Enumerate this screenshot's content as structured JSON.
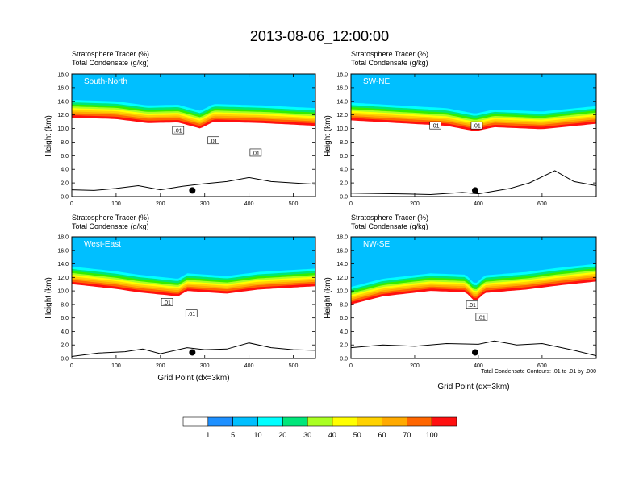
{
  "chart_data": {
    "type": "heatmap",
    "title": "2013-08-06_12:00:00",
    "variables": [
      {
        "name": "Stratosphere Tracer",
        "units": "(%)"
      },
      {
        "name": "Total Condensate",
        "units": "(g/kg)"
      }
    ],
    "xlabel": "Grid Point (dx=3km)",
    "ylabel": "Height (km)",
    "ylim": [
      0,
      18
    ],
    "yticks": [
      "0.0",
      "2.0",
      "4.0",
      "6.0",
      "8.0",
      "10.0",
      "12.0",
      "14.0",
      "16.0",
      "18.0"
    ],
    "contour_note": "Total Condensate Contours: .01 to .01 by .000",
    "colorbar": {
      "levels": [
        "1",
        "5",
        "10",
        "20",
        "30",
        "40",
        "50",
        "60",
        "70",
        "100"
      ],
      "colors": [
        "#ffffff",
        "#1e90ff",
        "#00bfff",
        "#00ffff",
        "#00e67a",
        "#33ee00",
        "#aaff22",
        "#ffff00",
        "#ffd200",
        "#ffaa00",
        "#ff6600",
        "#ff1010"
      ]
    },
    "panels": [
      {
        "name": "South-North",
        "xlim": [
          0,
          550
        ],
        "xticks": [
          0,
          100,
          200,
          300,
          400,
          500
        ],
        "tropopause_km": [
          [
            0,
            14.2
          ],
          [
            100,
            14.0
          ],
          [
            170,
            13.4
          ],
          [
            240,
            13.5
          ],
          [
            290,
            12.6
          ],
          [
            320,
            13.6
          ],
          [
            430,
            13.4
          ],
          [
            550,
            13.0
          ]
        ],
        "terrain_km": [
          [
            0,
            1.0
          ],
          [
            50,
            0.9
          ],
          [
            100,
            1.2
          ],
          [
            150,
            1.6
          ],
          [
            200,
            1.0
          ],
          [
            250,
            1.5
          ],
          [
            300,
            1.9
          ],
          [
            350,
            2.2
          ],
          [
            400,
            2.8
          ],
          [
            450,
            2.2
          ],
          [
            500,
            2.0
          ],
          [
            550,
            1.8
          ]
        ],
        "marker_x": 272,
        "contour_labels": [
          ".01",
          ".01",
          ".01"
        ],
        "contour_label_xy": [
          [
            240,
            9.7
          ],
          [
            320,
            8.2
          ],
          [
            415,
            6.4
          ]
        ]
      },
      {
        "name": "SW-NE",
        "xlim": [
          0,
          770
        ],
        "xticks": [
          0,
          200,
          400,
          600
        ],
        "tropopause_km": [
          [
            0,
            13.8
          ],
          [
            150,
            13.4
          ],
          [
            300,
            13.0
          ],
          [
            390,
            12.2
          ],
          [
            450,
            12.8
          ],
          [
            600,
            12.5
          ],
          [
            770,
            13.3
          ]
        ],
        "terrain_km": [
          [
            0,
            0.5
          ],
          [
            150,
            0.4
          ],
          [
            250,
            0.3
          ],
          [
            350,
            0.6
          ],
          [
            400,
            0.4
          ],
          [
            500,
            1.2
          ],
          [
            560,
            2.0
          ],
          [
            640,
            3.8
          ],
          [
            700,
            2.2
          ],
          [
            770,
            1.6
          ]
        ],
        "marker_x": 390,
        "contour_labels": [
          ".01",
          ".01"
        ],
        "contour_label_xy": [
          [
            265,
            10.4
          ],
          [
            395,
            10.4
          ]
        ]
      },
      {
        "name": "West-East",
        "xlim": [
          0,
          550
        ],
        "xticks": [
          0,
          100,
          200,
          300,
          400,
          500
        ],
        "tropopause_km": [
          [
            0,
            13.6
          ],
          [
            100,
            12.9
          ],
          [
            150,
            12.4
          ],
          [
            240,
            11.8
          ],
          [
            260,
            12.6
          ],
          [
            350,
            12.2
          ],
          [
            420,
            12.8
          ],
          [
            550,
            13.3
          ]
        ],
        "terrain_km": [
          [
            0,
            0.3
          ],
          [
            60,
            0.8
          ],
          [
            120,
            1.0
          ],
          [
            160,
            1.4
          ],
          [
            200,
            0.7
          ],
          [
            260,
            1.6
          ],
          [
            300,
            1.3
          ],
          [
            350,
            1.4
          ],
          [
            400,
            2.3
          ],
          [
            450,
            1.6
          ],
          [
            500,
            1.3
          ],
          [
            550,
            1.2
          ]
        ],
        "marker_x": 272,
        "contour_labels": [
          ".01",
          ".01"
        ],
        "contour_label_xy": [
          [
            215,
            8.3
          ],
          [
            270,
            6.6
          ]
        ]
      },
      {
        "name": "NW-SE",
        "xlim": [
          0,
          770
        ],
        "xticks": [
          0,
          200,
          400,
          600
        ],
        "tropopause_km": [
          [
            0,
            10.6
          ],
          [
            100,
            11.8
          ],
          [
            250,
            12.6
          ],
          [
            360,
            12.4
          ],
          [
            390,
            11.0
          ],
          [
            420,
            12.3
          ],
          [
            550,
            12.8
          ],
          [
            650,
            13.4
          ],
          [
            770,
            14.0
          ]
        ],
        "terrain_km": [
          [
            0,
            1.6
          ],
          [
            100,
            2.0
          ],
          [
            200,
            1.8
          ],
          [
            300,
            2.2
          ],
          [
            400,
            2.1
          ],
          [
            450,
            2.6
          ],
          [
            520,
            2.0
          ],
          [
            600,
            2.2
          ],
          [
            700,
            1.2
          ],
          [
            770,
            0.4
          ]
        ],
        "marker_x": 390,
        "contour_labels": [
          ".01",
          ".01"
        ],
        "contour_label_xy": [
          [
            380,
            7.9
          ],
          [
            410,
            6.1
          ]
        ]
      }
    ]
  }
}
